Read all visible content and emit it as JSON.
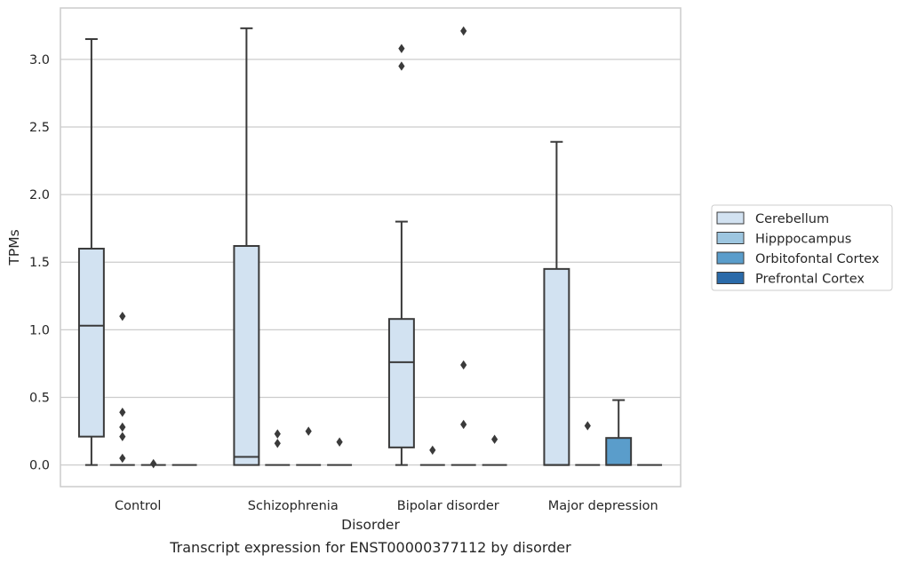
{
  "caption": "Transcript expression for ENST00000377112 by disorder",
  "colors": {
    "Cerebellum": "#d2e2f1",
    "Hipppocampus": "#9dc6e0",
    "Orbitofontal Cortex": "#5a9dcb",
    "Prefrontal Cortex": "#2a6aa9",
    "grid": "#cccccc",
    "frame": "#cccccc",
    "line": "#3a3a3a"
  },
  "chart_data": {
    "type": "box",
    "xlabel": "Disorder",
    "ylabel": "TPMs",
    "ylim": [
      -0.16,
      3.38
    ],
    "yticks": [
      0.0,
      0.5,
      1.0,
      1.5,
      2.0,
      2.5,
      3.0
    ],
    "ytick_labels": [
      "0.0",
      "0.5",
      "1.0",
      "1.5",
      "2.0",
      "2.5",
      "3.0"
    ],
    "grid": true,
    "legend_position": "right",
    "categories": [
      "Control",
      "Schizophrenia",
      "Bipolar disorder",
      "Major depression"
    ],
    "series": [
      {
        "name": "Cerebellum",
        "boxes": [
          {
            "q1": 0.21,
            "median": 1.03,
            "q3": 1.6,
            "whislo": 0.0,
            "whishi": 3.15,
            "fliers": []
          },
          {
            "q1": 0.0,
            "median": 0.06,
            "q3": 1.62,
            "whislo": 0.0,
            "whishi": 3.23,
            "fliers": []
          },
          {
            "q1": 0.13,
            "median": 0.76,
            "q3": 1.08,
            "whislo": 0.0,
            "whishi": 1.8,
            "fliers": [
              2.95,
              3.08
            ]
          },
          {
            "q1": 0.0,
            "median": 0.0,
            "q3": 1.45,
            "whislo": 0.0,
            "whishi": 2.39,
            "fliers": []
          }
        ]
      },
      {
        "name": "Hipppocampus",
        "boxes": [
          {
            "q1": 0.0,
            "median": 0.0,
            "q3": 0.0,
            "whislo": 0.0,
            "whishi": 0.0,
            "fliers": [
              0.05,
              0.21,
              0.28,
              0.39,
              1.1
            ]
          },
          {
            "q1": 0.0,
            "median": 0.0,
            "q3": 0.0,
            "whislo": 0.0,
            "whishi": 0.0,
            "fliers": [
              0.16,
              0.23
            ]
          },
          {
            "q1": 0.0,
            "median": 0.0,
            "q3": 0.0,
            "whislo": 0.0,
            "whishi": 0.0,
            "fliers": [
              0.11
            ]
          },
          {
            "q1": 0.0,
            "median": 0.0,
            "q3": 0.0,
            "whislo": 0.0,
            "whishi": 0.0,
            "fliers": [
              0.29
            ]
          }
        ]
      },
      {
        "name": "Orbitofontal Cortex",
        "boxes": [
          {
            "q1": 0.0,
            "median": 0.0,
            "q3": 0.0,
            "whislo": 0.0,
            "whishi": 0.0,
            "fliers": [
              0.01
            ]
          },
          {
            "q1": 0.0,
            "median": 0.0,
            "q3": 0.0,
            "whislo": 0.0,
            "whishi": 0.0,
            "fliers": [
              0.25
            ]
          },
          {
            "q1": 0.0,
            "median": 0.0,
            "q3": 0.0,
            "whislo": 0.0,
            "whishi": 0.0,
            "fliers": [
              0.3,
              0.74,
              3.21
            ]
          },
          {
            "q1": 0.0,
            "median": 0.0,
            "q3": 0.2,
            "whislo": 0.0,
            "whishi": 0.48,
            "fliers": []
          }
        ]
      },
      {
        "name": "Prefrontal Cortex",
        "boxes": [
          {
            "q1": 0.0,
            "median": 0.0,
            "q3": 0.0,
            "whislo": 0.0,
            "whishi": 0.0,
            "fliers": []
          },
          {
            "q1": 0.0,
            "median": 0.0,
            "q3": 0.0,
            "whislo": 0.0,
            "whishi": 0.0,
            "fliers": [
              0.17
            ]
          },
          {
            "q1": 0.0,
            "median": 0.0,
            "q3": 0.0,
            "whislo": 0.0,
            "whishi": 0.0,
            "fliers": [
              0.19
            ]
          },
          {
            "q1": 0.0,
            "median": 0.0,
            "q3": 0.0,
            "whislo": 0.0,
            "whishi": 0.0,
            "fliers": []
          }
        ]
      }
    ]
  }
}
